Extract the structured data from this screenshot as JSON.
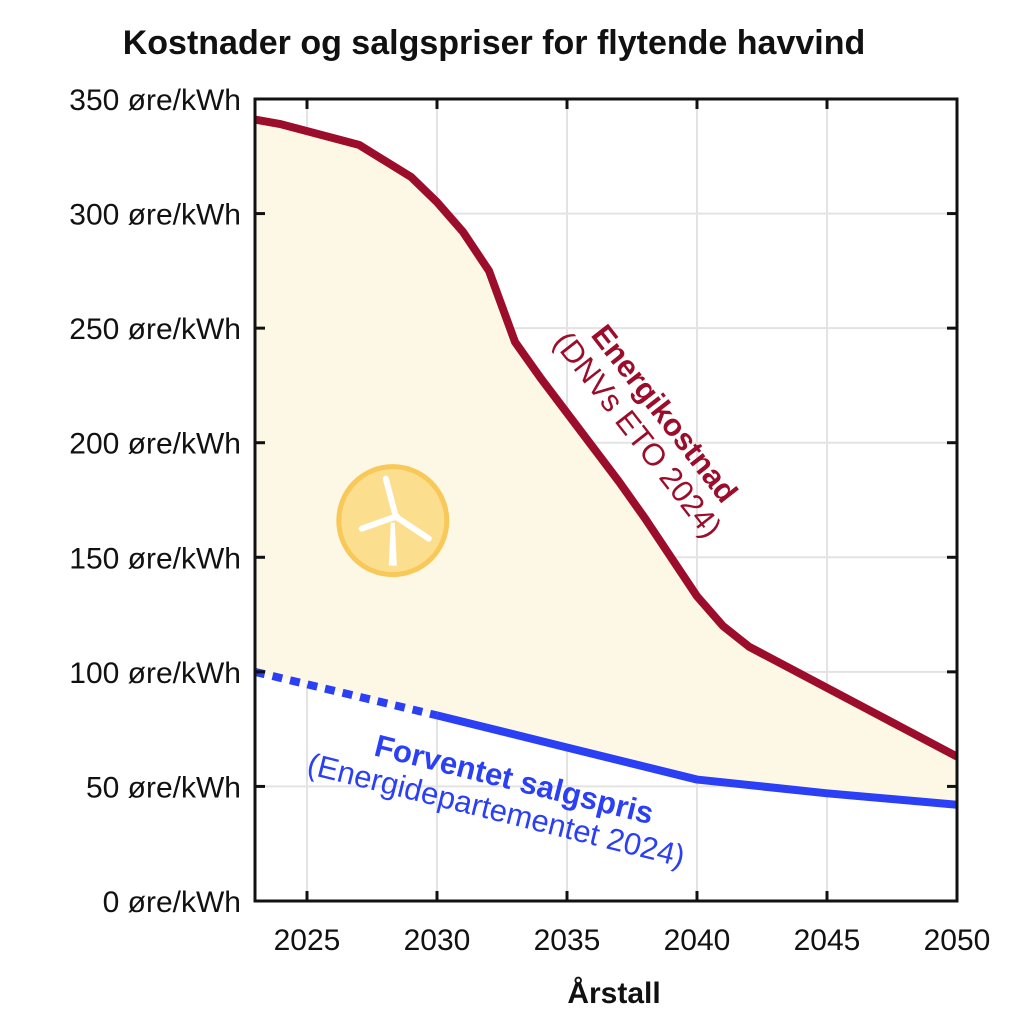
{
  "chart_data": {
    "type": "line",
    "title": "Kostnader og salgspriser for flytende havvind",
    "xlabel": "Årstall",
    "ylabel": "",
    "xlim": [
      2023,
      2050
    ],
    "ylim": [
      0,
      350
    ],
    "x_ticks": [
      2025,
      2030,
      2035,
      2040,
      2045,
      2050
    ],
    "y_ticks": [
      0,
      50,
      100,
      150,
      200,
      250,
      300,
      350
    ],
    "y_tick_labels": [
      "0 øre/kWh",
      "50 øre/kWh",
      "100 øre/kWh",
      "150 øre/kWh",
      "200 øre/kWh",
      "250 øre/kWh",
      "300 øre/kWh",
      "350 øre/kWh"
    ],
    "grid": true,
    "fill_between_series": {
      "color": "#fdf8e6"
    },
    "series": [
      {
        "label_line1": "Energikostnad",
        "label_line2": "(DNVs ETO 2024)",
        "color": "#9b0d2a",
        "x": [
          2023,
          2024,
          2025,
          2026,
          2027,
          2028,
          2029,
          2030,
          2031,
          2032,
          2033,
          2034,
          2035,
          2036,
          2037,
          2038,
          2039,
          2040,
          2041,
          2042,
          2043,
          2044,
          2045,
          2046,
          2047,
          2048,
          2049,
          2050
        ],
        "y": [
          341,
          339,
          336,
          333,
          330,
          323,
          316,
          305,
          292,
          275,
          244,
          228,
          213,
          198,
          183,
          167,
          150,
          133,
          120,
          111,
          105,
          99,
          93,
          87,
          81,
          75,
          69,
          63
        ]
      },
      {
        "label_line1": "Forventet salgspris",
        "label_line2": "(Energidepartementet 2024)",
        "color": "#2b3ff5",
        "dashed_until_x": 2030,
        "x": [
          2023,
          2030,
          2035,
          2040,
          2045,
          2050
        ],
        "y": [
          100,
          81,
          67,
          53,
          47,
          42
        ]
      }
    ],
    "icon": "wind-turbine-icon",
    "icon_colors": {
      "fill": "#fcdf8e",
      "stroke": "#f8c859",
      "turbine": "#ffffff"
    }
  }
}
